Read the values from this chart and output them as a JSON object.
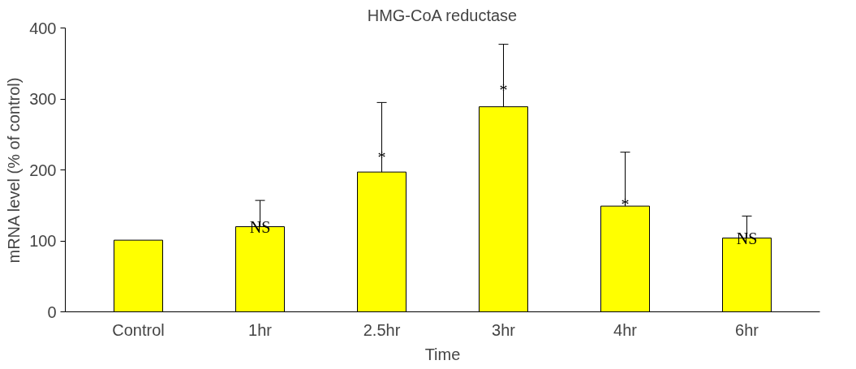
{
  "chart_data": {
    "type": "bar",
    "title": "HMG-CoA reductase",
    "xlabel": "Time",
    "ylabel": "mRNA level (% of control)",
    "categories": [
      "Control",
      "1hr",
      "2.5hr",
      "3hr",
      "4hr",
      "6hr"
    ],
    "values": [
      101,
      120,
      197,
      289,
      149,
      104
    ],
    "errors": [
      null,
      [
        120,
        157
      ],
      [
        197,
        295
      ],
      [
        289,
        377
      ],
      [
        149,
        225
      ],
      [
        104,
        135
      ]
    ],
    "color": "#ffff00",
    "ylim": [
      0,
      400
    ],
    "yticks": [
      0,
      100,
      200,
      300,
      400
    ],
    "grid": false,
    "annotations": [
      {
        "text": "NS",
        "x": "1hr",
        "y": 120
      },
      {
        "text": "*",
        "x": "2.5hr",
        "y": 218
      },
      {
        "text": "*",
        "x": "3hr",
        "y": 313
      },
      {
        "text": "*",
        "x": "4hr",
        "y": 152
      },
      {
        "text": "NS",
        "x": "6hr",
        "y": 104
      }
    ]
  }
}
